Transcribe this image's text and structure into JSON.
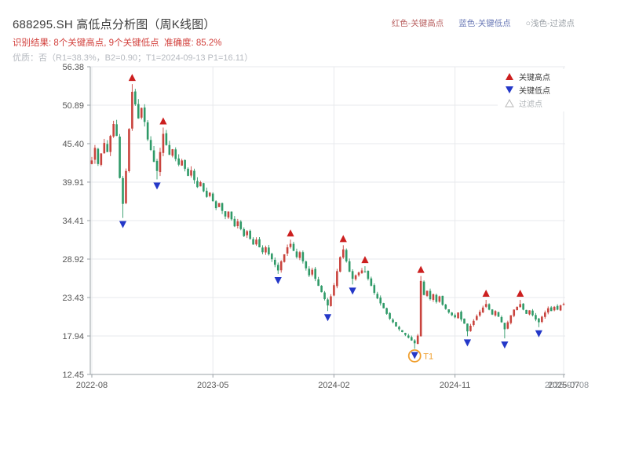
{
  "header": {
    "title": "688295.SH 高低点分析图（周K线图）",
    "legend_top": {
      "high": "红色-关键高点",
      "low": "蓝色-关键低点",
      "filter": "○浅色-过滤点"
    },
    "result_line": "识别结果: 8个关键高点, 9个关键低点  准确度: 85.2%",
    "quality_line": "优质：否（R1=38.3%，B2=0.90；T1=2024-09-13 P1=16.11）"
  },
  "chart_data": {
    "type": "candlestick",
    "symbol": "688295.SH",
    "period": "weekly",
    "title": "688295.SH 高低点分析图（周K线图）",
    "ylim": [
      12.45,
      56.38
    ],
    "y_ticks": [
      56.38,
      50.89,
      45.4,
      39.91,
      34.41,
      28.92,
      23.43,
      17.94,
      12.45
    ],
    "x_ticks": [
      "2022-08",
      "2023-05",
      "2024-02",
      "2024-11",
      "2025-07"
    ],
    "x_tick_weeks": [
      0,
      39,
      78,
      117,
      152
    ],
    "end_label": "2025-07-08",
    "start_date": "2022-08",
    "weekly_closes": [
      43.0,
      44.8,
      42.5,
      44.0,
      45.5,
      44.2,
      46.5,
      48.2,
      46.5,
      40.5,
      36.8,
      41.5,
      47.5,
      52.8,
      51.0,
      49.0,
      50.5,
      48.5,
      46.0,
      44.5,
      42.8,
      41.5,
      44.2,
      46.8,
      45.2,
      43.8,
      44.6,
      43.2,
      42.4,
      43.0,
      41.8,
      40.8,
      41.6,
      40.2,
      39.2,
      39.9,
      38.6,
      37.8,
      38.4,
      37.2,
      36.2,
      36.9,
      35.8,
      35.0,
      35.7,
      34.6,
      33.6,
      34.3,
      33.2,
      32.2,
      32.9,
      31.8,
      31.0,
      31.7,
      30.6,
      29.9,
      30.6,
      29.6,
      28.9,
      28.1,
      27.3,
      28.6,
      29.6,
      30.6,
      31.1,
      30.1,
      29.2,
      29.9,
      28.6,
      27.6,
      26.6,
      27.4,
      26.1,
      25.1,
      24.2,
      23.2,
      22.3,
      23.6,
      25.2,
      27.2,
      29.2,
      30.3,
      28.6,
      27.1,
      26.1,
      26.6,
      27.0,
      27.3,
      27.1,
      26.1,
      25.1,
      24.1,
      23.3,
      22.6,
      21.9,
      21.1,
      20.4,
      19.9,
      19.3,
      18.9,
      18.5,
      18.1,
      17.7,
      17.3,
      16.9,
      18.0,
      25.8,
      23.8,
      24.4,
      23.2,
      23.9,
      22.8,
      23.6,
      22.4,
      21.8,
      21.3,
      20.9,
      20.6,
      21.3,
      20.3,
      19.7,
      18.6,
      19.4,
      20.1,
      20.8,
      21.4,
      22.0,
      22.5,
      21.7,
      21.0,
      21.5,
      20.7,
      19.9,
      18.9,
      19.9,
      20.9,
      21.7,
      22.1,
      22.5,
      21.7,
      21.1,
      21.6,
      20.9,
      20.3,
      19.9,
      20.7,
      21.3,
      21.9,
      21.5,
      22.1,
      21.7,
      22.3,
      22.5
    ],
    "key_highs": [
      {
        "week": 13,
        "value": 53.9
      },
      {
        "week": 23,
        "value": 47.7
      },
      {
        "week": 64,
        "value": 31.7
      },
      {
        "week": 81,
        "value": 30.9
      },
      {
        "week": 88,
        "value": 27.9
      },
      {
        "week": 106,
        "value": 26.5
      },
      {
        "week": 127,
        "value": 23.1
      },
      {
        "week": 138,
        "value": 23.1
      }
    ],
    "key_lows": [
      {
        "week": 10,
        "value": 34.8
      },
      {
        "week": 21,
        "value": 40.3
      },
      {
        "week": 60,
        "value": 26.8
      },
      {
        "week": 76,
        "value": 21.5
      },
      {
        "week": 84,
        "value": 25.3
      },
      {
        "week": 104,
        "value": 16.11
      },
      {
        "week": 121,
        "value": 17.9
      },
      {
        "week": 133,
        "value": 17.6
      },
      {
        "week": 144,
        "value": 19.2
      }
    ],
    "t1_marker": {
      "week": 104,
      "label": "T1",
      "value": 16.11,
      "date": "2024-09-13"
    },
    "candle_open_overrides": {
      "106": 17.9
    },
    "legend_items": [
      {
        "label": "关键高点",
        "marker": "up-red"
      },
      {
        "label": "关键低点",
        "marker": "down-blue"
      },
      {
        "label": "过滤点",
        "marker": "up-hollow"
      }
    ],
    "colors": {
      "up": "#c9443e",
      "down": "#2f9a68",
      "key_high": "#cc1f1f",
      "key_low": "#2438c8",
      "filter": "#bbbbbb",
      "t1": "#f0a030",
      "grid": "#e7e9ec",
      "axis": "#9aa0a6",
      "tick_text": "#555555"
    }
  }
}
